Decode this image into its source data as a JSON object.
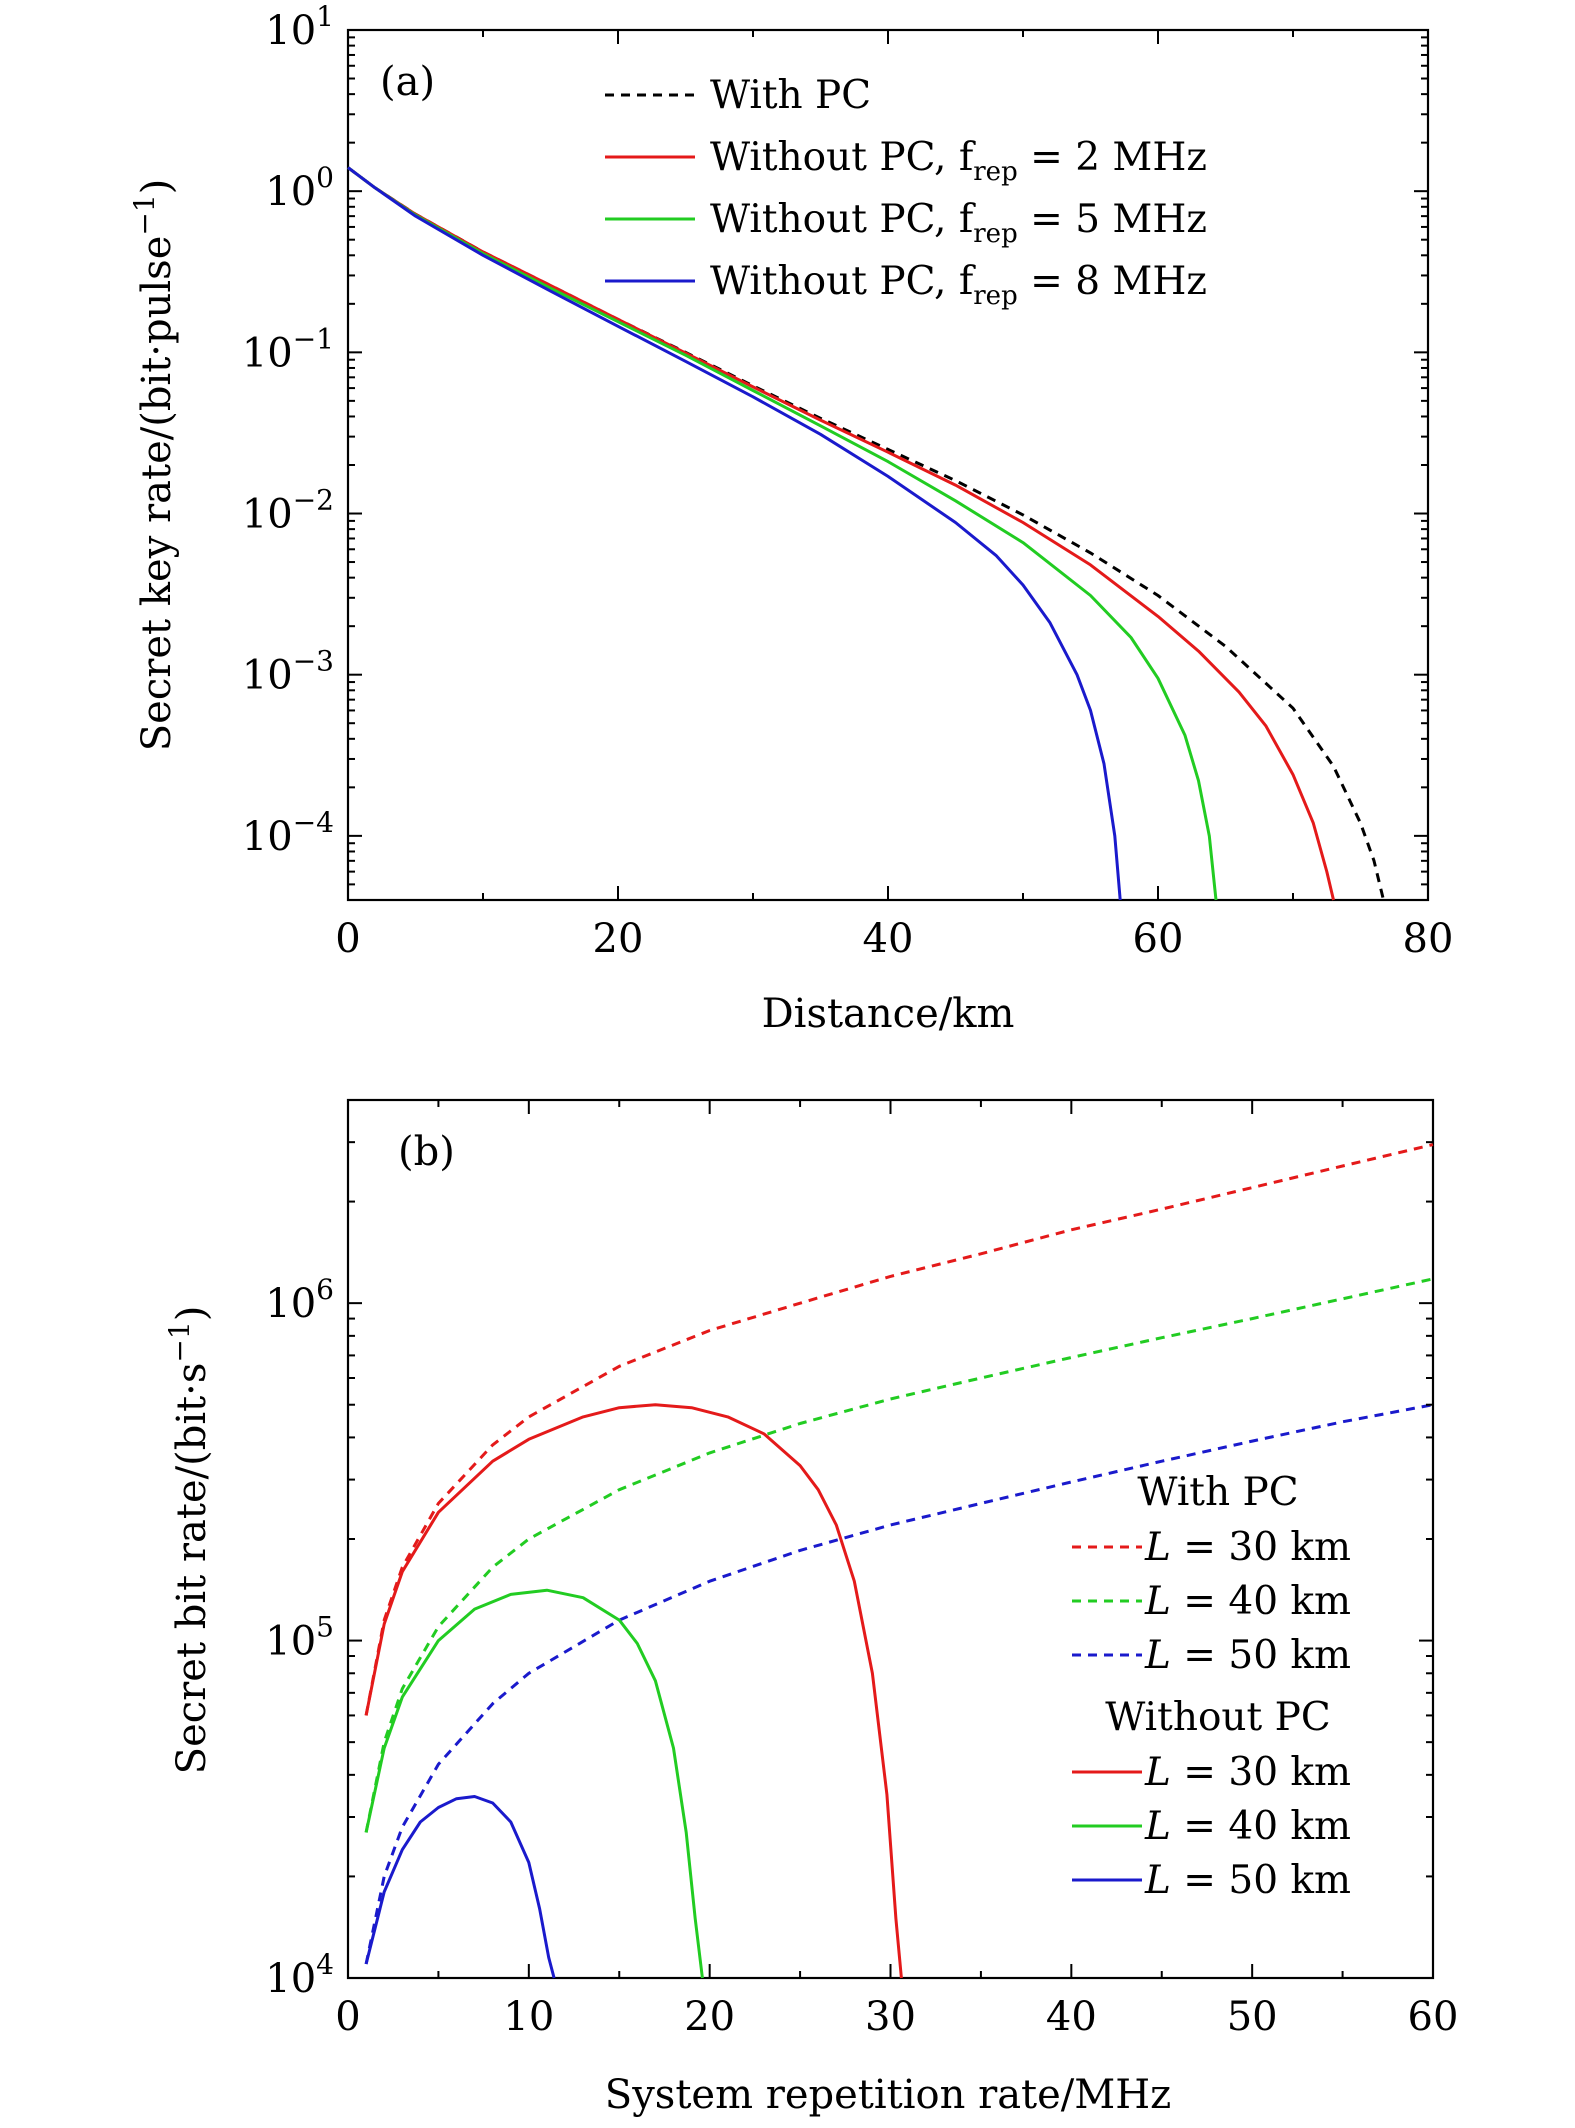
{
  "chart_data": [
    {
      "type": "line",
      "panel_label": "(a)",
      "xlabel": "Distance/km",
      "ylabel": "Secret key rate/(bit·pulse",
      "ylabel_sup": "−1",
      "ylabel_close": ")",
      "xlim": [
        0,
        80
      ],
      "ylim": [
        4e-05,
        10
      ],
      "yscale": "log",
      "xticks": [
        0,
        20,
        40,
        60,
        80
      ],
      "xtick_labels": [
        "0",
        "20",
        "40",
        "60",
        "80"
      ],
      "yticks": [
        {
          "value": 10,
          "base": "10",
          "exp": "1"
        },
        {
          "value": 1,
          "base": "10",
          "exp": "0"
        },
        {
          "value": 0.1,
          "base": "10",
          "exp": "−1"
        },
        {
          "value": 0.01,
          "base": "10",
          "exp": "−2"
        },
        {
          "value": 0.001,
          "base": "10",
          "exp": "−3"
        },
        {
          "value": 0.0001,
          "base": "10",
          "exp": "−4"
        }
      ],
      "legend_position": "top-right",
      "series": [
        {
          "name": "With PC",
          "label_main": "With PC",
          "label_sub": "",
          "label_end": "",
          "color": "#000000",
          "dashed": true,
          "points": [
            [
              0,
              1.4
            ],
            [
              2,
              1.05
            ],
            [
              5,
              0.72
            ],
            [
              10,
              0.42
            ],
            [
              15,
              0.26
            ],
            [
              20,
              0.16
            ],
            [
              25,
              0.1
            ],
            [
              30,
              0.062
            ],
            [
              35,
              0.039
            ],
            [
              40,
              0.025
            ],
            [
              45,
              0.016
            ],
            [
              50,
              0.0098
            ],
            [
              55,
              0.0057
            ],
            [
              60,
              0.0031
            ],
            [
              65,
              0.0015
            ],
            [
              70,
              0.00062
            ],
            [
              73,
              0.00027
            ],
            [
              75,
              0.00012
            ],
            [
              76,
              7e-05
            ],
            [
              76.7,
              4e-05
            ]
          ]
        },
        {
          "name": "Without PC, frep = 2 MHz",
          "label_main": "Without PC, f",
          "label_sub": "rep",
          "label_end": " = 2 MHz",
          "color": "#e41a1a",
          "dashed": false,
          "points": [
            [
              0,
              1.4
            ],
            [
              2,
              1.05
            ],
            [
              5,
              0.72
            ],
            [
              10,
              0.42
            ],
            [
              15,
              0.26
            ],
            [
              20,
              0.16
            ],
            [
              25,
              0.099
            ],
            [
              30,
              0.061
            ],
            [
              35,
              0.038
            ],
            [
              40,
              0.024
            ],
            [
              45,
              0.015
            ],
            [
              50,
              0.0088
            ],
            [
              55,
              0.0048
            ],
            [
              60,
              0.0023
            ],
            [
              63,
              0.0014
            ],
            [
              66,
              0.00078
            ],
            [
              68,
              0.00048
            ],
            [
              70,
              0.00024
            ],
            [
              71.5,
              0.00012
            ],
            [
              72.5,
              6e-05
            ],
            [
              73,
              4e-05
            ]
          ]
        },
        {
          "name": "Without PC, frep = 5 MHz",
          "label_main": "Without PC, f",
          "label_sub": "rep",
          "label_end": " = 5 MHz",
          "color": "#22cc22",
          "dashed": false,
          "points": [
            [
              0,
              1.4
            ],
            [
              2,
              1.05
            ],
            [
              5,
              0.71
            ],
            [
              10,
              0.41
            ],
            [
              15,
              0.25
            ],
            [
              20,
              0.155
            ],
            [
              25,
              0.096
            ],
            [
              30,
              0.058
            ],
            [
              35,
              0.035
            ],
            [
              40,
              0.021
            ],
            [
              45,
              0.012
            ],
            [
              50,
              0.0066
            ],
            [
              55,
              0.0031
            ],
            [
              58,
              0.0017
            ],
            [
              60,
              0.00095
            ],
            [
              62,
              0.00042
            ],
            [
              63,
              0.00022
            ],
            [
              63.8,
              0.0001
            ],
            [
              64.3,
              4e-05
            ]
          ]
        },
        {
          "name": "Without PC, frep = 8 MHz",
          "label_main": "Without PC, f",
          "label_sub": "rep",
          "label_end": " = 8 MHz",
          "color": "#1a1acc",
          "dashed": false,
          "points": [
            [
              0,
              1.4
            ],
            [
              2,
              1.05
            ],
            [
              5,
              0.7
            ],
            [
              10,
              0.4
            ],
            [
              15,
              0.24
            ],
            [
              20,
              0.145
            ],
            [
              25,
              0.088
            ],
            [
              30,
              0.053
            ],
            [
              35,
              0.031
            ],
            [
              40,
              0.017
            ],
            [
              45,
              0.0088
            ],
            [
              48,
              0.0055
            ],
            [
              50,
              0.0036
            ],
            [
              52,
              0.0021
            ],
            [
              54,
              0.001
            ],
            [
              55,
              0.0006
            ],
            [
              56,
              0.00028
            ],
            [
              56.8,
              0.0001
            ],
            [
              57.2,
              4e-05
            ]
          ]
        }
      ]
    },
    {
      "type": "line",
      "panel_label": "(b)",
      "xlabel": "System repetition rate/MHz",
      "ylabel": "Secret bit rate/(bit·s",
      "ylabel_sup": "−1",
      "ylabel_close": ")",
      "xlim": [
        0,
        60
      ],
      "ylim": [
        10000,
        4000000
      ],
      "yscale": "log",
      "xticks": [
        0,
        10,
        20,
        30,
        40,
        50,
        60
      ],
      "xtick_labels": [
        "0",
        "10",
        "20",
        "30",
        "40",
        "50",
        "60"
      ],
      "yticks": [
        {
          "value": 10000,
          "base": "10",
          "exp": "4"
        },
        {
          "value": 100000,
          "base": "10",
          "exp": "5"
        },
        {
          "value": 1000000,
          "base": "10",
          "exp": "6"
        }
      ],
      "legend_position": "right",
      "legend_groups": [
        {
          "title": "With PC",
          "series_indices": [
            0,
            1,
            2
          ]
        },
        {
          "title": "Without PC",
          "series_indices": [
            3,
            4,
            5
          ]
        }
      ],
      "series": [
        {
          "name": "L = 30 km",
          "label_var": "L",
          "label_rest": " = 30 km",
          "color": "#e41a1a",
          "dashed": true,
          "points": [
            [
              1,
              60000
            ],
            [
              2,
              115000
            ],
            [
              3,
              165000
            ],
            [
              5,
              255000
            ],
            [
              8,
              380000
            ],
            [
              10,
              460000
            ],
            [
              15,
              650000
            ],
            [
              20,
              830000
            ],
            [
              25,
              1000000
            ],
            [
              30,
              1200000
            ],
            [
              35,
              1400000
            ],
            [
              40,
              1650000
            ],
            [
              45,
              1900000
            ],
            [
              50,
              2200000
            ],
            [
              55,
              2550000
            ],
            [
              60,
              2950000
            ]
          ]
        },
        {
          "name": "L = 40 km",
          "label_var": "L",
          "label_rest": " = 40 km",
          "color": "#22cc22",
          "dashed": true,
          "points": [
            [
              1,
              27000
            ],
            [
              2,
              50000
            ],
            [
              3,
              72000
            ],
            [
              5,
              110000
            ],
            [
              8,
              165000
            ],
            [
              10,
              200000
            ],
            [
              15,
              280000
            ],
            [
              20,
              360000
            ],
            [
              25,
              440000
            ],
            [
              30,
              520000
            ],
            [
              35,
              600000
            ],
            [
              40,
              690000
            ],
            [
              45,
              790000
            ],
            [
              50,
              900000
            ],
            [
              55,
              1030000
            ],
            [
              60,
              1180000
            ]
          ]
        },
        {
          "name": "L = 50 km",
          "label_var": "L",
          "label_rest": " = 50 km",
          "color": "#1a1acc",
          "dashed": true,
          "points": [
            [
              1,
              11000
            ],
            [
              2,
              20000
            ],
            [
              3,
              28000
            ],
            [
              5,
              43000
            ],
            [
              8,
              65000
            ],
            [
              10,
              80000
            ],
            [
              15,
              115000
            ],
            [
              20,
              150000
            ],
            [
              25,
              185000
            ],
            [
              30,
              220000
            ],
            [
              35,
              255000
            ],
            [
              40,
              295000
            ],
            [
              45,
              340000
            ],
            [
              50,
              390000
            ],
            [
              55,
              445000
            ],
            [
              60,
              500000
            ]
          ]
        },
        {
          "name": "L = 30 km",
          "label_var": "L",
          "label_rest": " = 30 km",
          "color": "#e41a1a",
          "dashed": false,
          "points": [
            [
              1,
              60000
            ],
            [
              2,
              112000
            ],
            [
              3,
              160000
            ],
            [
              5,
              240000
            ],
            [
              8,
              340000
            ],
            [
              10,
              395000
            ],
            [
              13,
              460000
            ],
            [
              15,
              490000
            ],
            [
              17,
              500000
            ],
            [
              19,
              490000
            ],
            [
              21,
              460000
            ],
            [
              23,
              410000
            ],
            [
              25,
              330000
            ],
            [
              26,
              280000
            ],
            [
              27,
              220000
            ],
            [
              28,
              150000
            ],
            [
              29,
              80000
            ],
            [
              29.8,
              35000
            ],
            [
              30.3,
              15000
            ],
            [
              30.6,
              10000
            ]
          ]
        },
        {
          "name": "L = 40 km",
          "label_var": "L",
          "label_rest": " = 40 km",
          "color": "#22cc22",
          "dashed": false,
          "points": [
            [
              1,
              27000
            ],
            [
              2,
              48000
            ],
            [
              3,
              68000
            ],
            [
              5,
              100000
            ],
            [
              7,
              124000
            ],
            [
              9,
              137000
            ],
            [
              11,
              141000
            ],
            [
              13,
              134000
            ],
            [
              15,
              115000
            ],
            [
              16,
              98000
            ],
            [
              17,
              76000
            ],
            [
              18,
              48000
            ],
            [
              18.7,
              27000
            ],
            [
              19.2,
              15000
            ],
            [
              19.6,
              10000
            ]
          ]
        },
        {
          "name": "L = 50 km",
          "label_var": "L",
          "label_rest": " = 50 km",
          "color": "#1a1acc",
          "dashed": false,
          "points": [
            [
              1,
              11000
            ],
            [
              2,
              18000
            ],
            [
              3,
              24000
            ],
            [
              4,
              29000
            ],
            [
              5,
              32000
            ],
            [
              6,
              34000
            ],
            [
              7,
              34500
            ],
            [
              8,
              33000
            ],
            [
              9,
              29000
            ],
            [
              10,
              22000
            ],
            [
              10.6,
              16000
            ],
            [
              11.1,
              11500
            ],
            [
              11.4,
              10000
            ]
          ]
        }
      ]
    }
  ]
}
